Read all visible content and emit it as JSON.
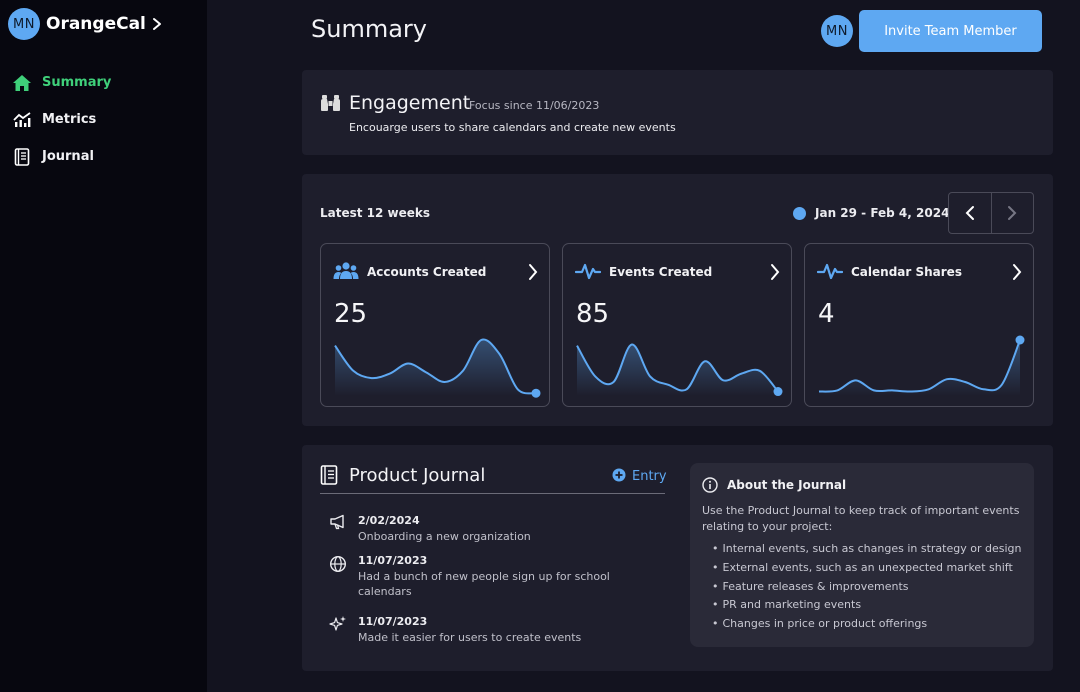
{
  "sidebar": {
    "avatar": "MN",
    "brand": "OrangeCal",
    "items": [
      {
        "label": "Summary",
        "icon": "home-icon",
        "active": true
      },
      {
        "label": "Metrics",
        "icon": "chart-icon",
        "active": false
      },
      {
        "label": "Journal",
        "icon": "journal-icon",
        "active": false
      }
    ]
  },
  "header": {
    "title": "Summary",
    "avatar": "MN",
    "invite_label": "Invite Team Member"
  },
  "engagement": {
    "title": "Engagement",
    "since": "Focus since 11/06/2023",
    "description": "Encouarge users to share calendars and create new events"
  },
  "weeks": {
    "heading": "Latest 12 weeks",
    "range": "Jan 29 - Feb 4, 2024",
    "metrics": [
      {
        "name": "Accounts Created",
        "value": "25",
        "icon": "users-icon",
        "trend": [
          0.9,
          0.45,
          0.32,
          0.4,
          0.58,
          0.42,
          0.25,
          0.45,
          1.0,
          0.75,
          0.12,
          0.05
        ]
      },
      {
        "name": "Events Created",
        "value": "85",
        "icon": "pulse-icon",
        "trend": [
          0.9,
          0.35,
          0.25,
          0.92,
          0.35,
          0.2,
          0.12,
          0.62,
          0.28,
          0.4,
          0.45,
          0.08
        ]
      },
      {
        "name": "Calendar Shares",
        "value": "4",
        "icon": "pulse-icon",
        "trend": [
          0.08,
          0.1,
          0.28,
          0.1,
          0.1,
          0.08,
          0.12,
          0.3,
          0.25,
          0.12,
          0.2,
          1.0
        ]
      }
    ]
  },
  "journal": {
    "title": "Product Journal",
    "entry_label": "Entry",
    "entries": [
      {
        "date": "2/02/2024",
        "text": "Onboarding a new organization",
        "icon": "megaphone-icon"
      },
      {
        "date": "11/07/2023",
        "text": "Had a bunch of new people sign up for school calendars",
        "icon": "globe-icon"
      },
      {
        "date": "11/07/2023",
        "text": "Made it easier for users to create events",
        "icon": "sparkles-icon"
      }
    ],
    "about": {
      "title": "About the Journal",
      "description": "Use the Product Journal to keep track of important events relating to your project:",
      "bullets": [
        "Internal events, such as changes in strategy or design",
        "External events, such as an unexpected market shift",
        "Feature releases & improvements",
        "PR and marketing events",
        "Changes in price or product offerings"
      ]
    }
  },
  "colors": {
    "accent": "#5ea8f2",
    "active_nav": "#3fd07a",
    "background": "#13131f",
    "sidebar": "#07070f",
    "card": "#1e1e2c"
  }
}
